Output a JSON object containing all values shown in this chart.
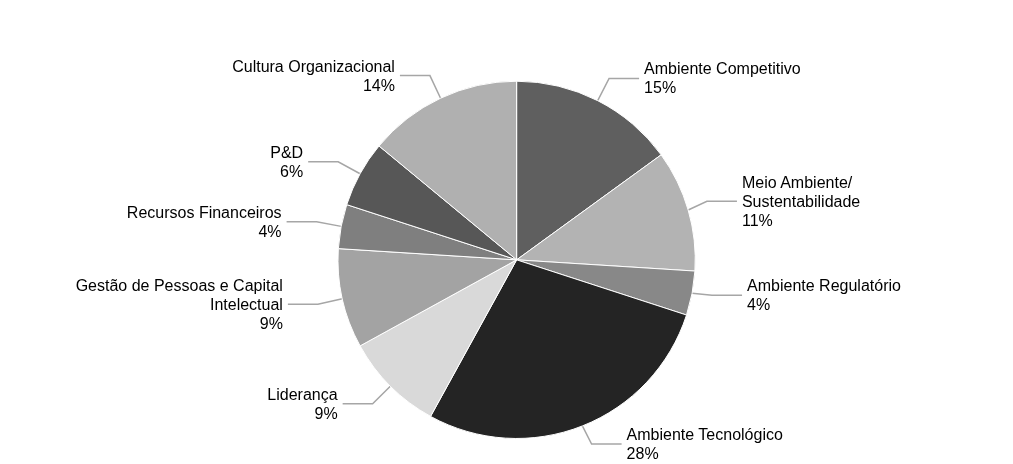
{
  "chart_data": {
    "type": "pie",
    "categories": [
      "Ambiente Competitivo",
      "Meio Ambiente/Sustentabilidade",
      "Ambiente Regulatório",
      "Ambiente Tecnológico",
      "Liderança",
      "Gestão de Pessoas e Capital Intelectual",
      "Recursos Financeiros",
      "P&D",
      "Cultura Organizacional"
    ],
    "values": [
      15,
      11,
      4,
      28,
      9,
      9,
      4,
      6,
      14
    ],
    "value_labels": [
      "15%",
      "11%",
      "4%",
      "28%",
      "9%",
      "9%",
      "4%",
      "6%",
      "14%"
    ],
    "colors": [
      "#5f5f5f",
      "#b3b3b3",
      "#888888",
      "#242424",
      "#d9d9d9",
      "#a3a3a3",
      "#7f7f7f",
      "#575757",
      "#b0b0b0"
    ],
    "legend": false
  }
}
